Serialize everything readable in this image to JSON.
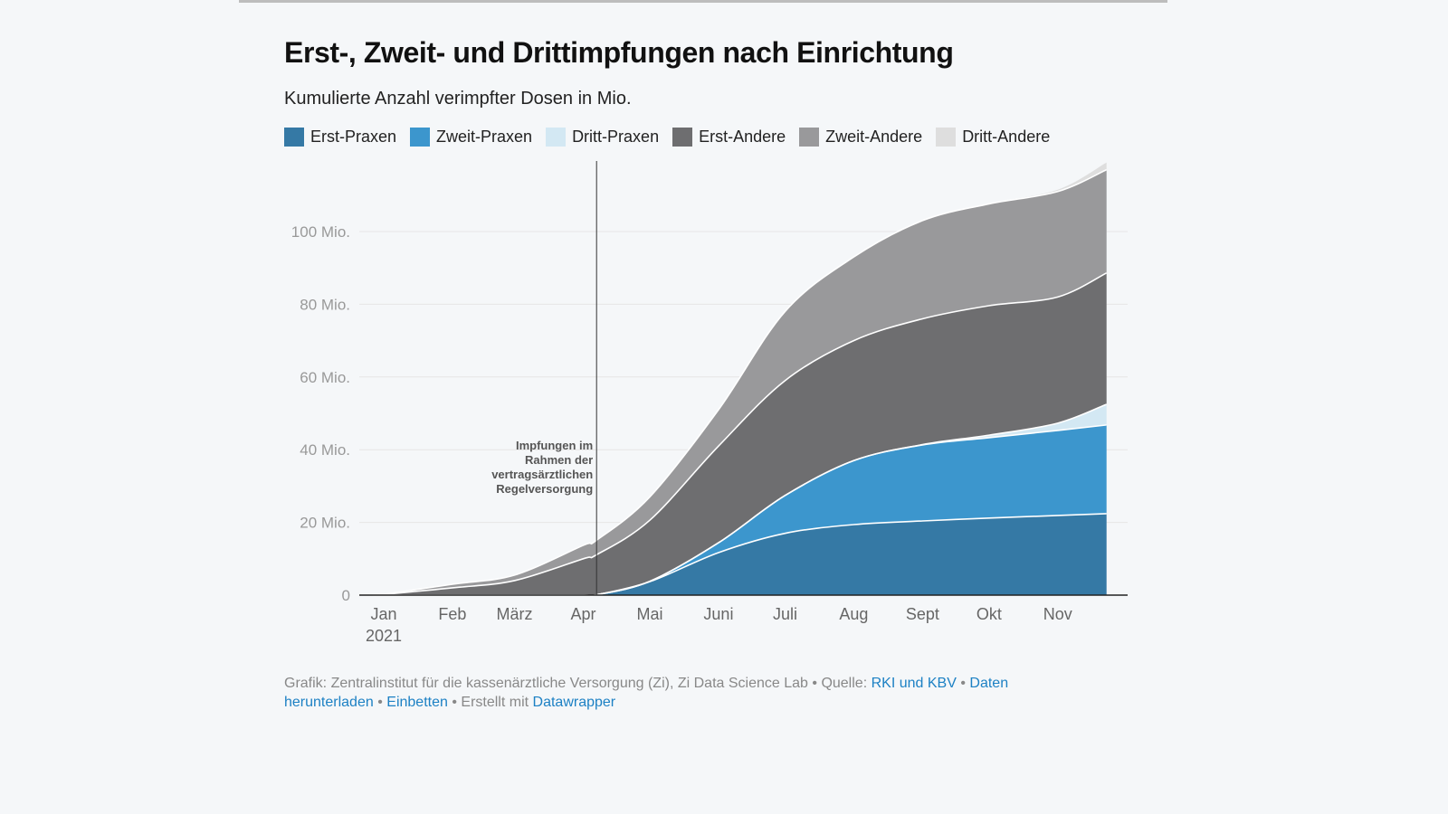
{
  "header": {
    "title": "Erst-,  Zweit- und Drittimpfungen nach Einrichtung",
    "subtitle": "Kumulierte Anzahl verimpfter Dosen in Mio."
  },
  "legend": [
    {
      "label": "Erst-Praxen",
      "color": "#3579a5"
    },
    {
      "label": "Zweit-Praxen",
      "color": "#3c96cd"
    },
    {
      "label": "Dritt-Praxen",
      "color": "#d3e8f3"
    },
    {
      "label": "Erst-Andere",
      "color": "#6e6e70"
    },
    {
      "label": "Zweit-Andere",
      "color": "#99999b"
    },
    {
      "label": "Dritt-Andere",
      "color": "#dedede"
    }
  ],
  "chart_data": {
    "type": "area",
    "stacked": true,
    "title": "Erst-,  Zweit- und Drittimpfungen nach Einrichtung",
    "subtitle": "Kumulierte Anzahl verimpfter Dosen in Mio.",
    "xlabel": "",
    "ylabel": "",
    "ylim": [
      0,
      120
    ],
    "grid": true,
    "legend_position": "top-left",
    "x": [
      "2020-12-27",
      "2021-01-01",
      "2021-02-01",
      "2021-03-01",
      "2021-04-01",
      "2021-04-07",
      "2021-05-01",
      "2021-06-01",
      "2021-07-01",
      "2021-08-01",
      "2021-09-01",
      "2021-10-01",
      "2021-11-01",
      "2021-11-23"
    ],
    "x_tick_labels": [
      "Jan\n2021",
      "Feb",
      "März",
      "Apr",
      "Mai",
      "Juni",
      "Juli",
      "Aug",
      "Sept",
      "Okt",
      "Nov"
    ],
    "x_tick_dates": [
      "2021-01-01",
      "2021-02-01",
      "2021-03-01",
      "2021-04-01",
      "2021-05-01",
      "2021-06-01",
      "2021-07-01",
      "2021-08-01",
      "2021-09-01",
      "2021-10-01",
      "2021-11-01"
    ],
    "y_ticks": [
      0,
      20,
      40,
      60,
      80,
      100
    ],
    "y_tick_labels": [
      "0",
      "20 Mio.",
      "40 Mio.",
      "60 Mio.",
      "80 Mio.",
      "100 Mio."
    ],
    "series": [
      {
        "name": "Erst-Praxen",
        "values": [
          0,
          0,
          0,
          0,
          0,
          0.1,
          3.7,
          11.7,
          17.0,
          19.4,
          20.4,
          21.2,
          21.9,
          22.4
        ]
      },
      {
        "name": "Zweit-Praxen",
        "values": [
          0,
          0,
          0,
          0,
          0,
          0,
          0.1,
          2.7,
          10.4,
          17.6,
          20.9,
          22.1,
          23.4,
          24.4
        ]
      },
      {
        "name": "Dritt-Praxen",
        "values": [
          0,
          0,
          0,
          0,
          0,
          0,
          0,
          0,
          0,
          0,
          0.1,
          0.7,
          2.0,
          5.7
        ]
      },
      {
        "name": "Erst-Andere",
        "values": [
          0,
          0.2,
          2.0,
          4.0,
          10.0,
          11.0,
          16.8,
          26.6,
          31.6,
          33.0,
          34.6,
          35.6,
          34.7,
          36.1
        ]
      },
      {
        "name": "Zweit-Andere",
        "values": [
          0,
          0,
          1.0,
          1.5,
          3.7,
          4.0,
          6.4,
          10.0,
          19.0,
          23.0,
          27.0,
          28.0,
          29.0,
          28.4
        ]
      },
      {
        "name": "Dritt-Andere",
        "values": [
          0,
          0,
          0,
          0,
          0,
          0,
          0,
          0,
          0,
          0,
          0,
          0.1,
          0.5,
          2.0
        ]
      }
    ],
    "annotations": [
      {
        "date": "2021-04-07",
        "type": "vertical-line",
        "text": [
          "Impfungen im",
          "Rahmen der",
          "vertragsärztlichen",
          "Regelversorgung"
        ]
      }
    ]
  },
  "footer": {
    "credit": "Grafik: Zentralinstitut für die kassenärztliche Versorgung (Zi), Zi Data Science Lab",
    "source_label": "Quelle:",
    "source_link": "RKI und KBV",
    "download_link": "Daten herunterladen",
    "embed_link": "Einbetten",
    "made_with_label": "Erstellt mit",
    "made_with_link": "Datawrapper",
    "separator": "•"
  }
}
